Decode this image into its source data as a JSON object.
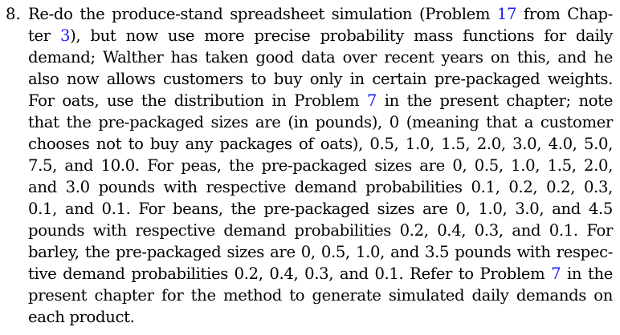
{
  "problem": {
    "number": "8.",
    "lines": [
      {
        "segments": [
          {
            "text": "Re-do the produce-stand spreadsheet simulation (Problem "
          },
          {
            "text": "17",
            "ref": true
          },
          {
            "text": " from Chap-"
          }
        ]
      },
      {
        "segments": [
          {
            "text": "ter "
          },
          {
            "text": "3",
            "ref": true
          },
          {
            "text": "), but now use more precise probability mass functions for daily"
          }
        ]
      },
      {
        "segments": [
          {
            "text": "demand; Walther has taken good data over recent years on this, and he"
          }
        ]
      },
      {
        "segments": [
          {
            "text": "also now allows customers to buy only in certain pre-packaged weights."
          }
        ]
      },
      {
        "segments": [
          {
            "text": "For oats, use the distribution in Problem "
          },
          {
            "text": "7",
            "ref": true
          },
          {
            "text": " in the present chapter; note"
          }
        ]
      },
      {
        "segments": [
          {
            "text": "that the pre-packaged sizes are (in pounds), 0 (meaning that a customer"
          }
        ]
      },
      {
        "segments": [
          {
            "text": "chooses not to buy any packages of oats), 0.5, 1.0, 1.5, 2.0, 3.0, 4.0, 5.0,"
          }
        ]
      },
      {
        "segments": [
          {
            "text": "7.5, and 10.0.  For peas, the pre-packaged sizes are 0, 0.5, 1.0, 1.5, 2.0,"
          }
        ]
      },
      {
        "segments": [
          {
            "text": "and 3.0 pounds with respective demand probabilities 0.1, 0.2, 0.2, 0.3,"
          }
        ]
      },
      {
        "segments": [
          {
            "text": "0.1, and 0.1.  For beans, the pre-packaged sizes are 0, 1.0, 3.0, and 4.5"
          }
        ]
      },
      {
        "segments": [
          {
            "text": "pounds with respective demand probabilities 0.2, 0.4, 0.3, and 0.1.  For"
          }
        ]
      },
      {
        "segments": [
          {
            "text": "barley, the pre-packaged sizes are 0, 0.5, 1.0, and 3.5 pounds with respec-"
          }
        ]
      },
      {
        "segments": [
          {
            "text": "tive demand probabilities 0.2, 0.4, 0.3, and 0.1. Refer to Problem "
          },
          {
            "text": "7",
            "ref": true
          },
          {
            "text": " in the"
          }
        ]
      },
      {
        "segments": [
          {
            "text": "present chapter for the method to generate simulated daily demands on"
          }
        ]
      },
      {
        "segments": [
          {
            "text": "each product."
          }
        ]
      }
    ]
  },
  "colors": {
    "text": "#000000",
    "reference_link": "#1a1aff",
    "background": "#ffffff"
  }
}
